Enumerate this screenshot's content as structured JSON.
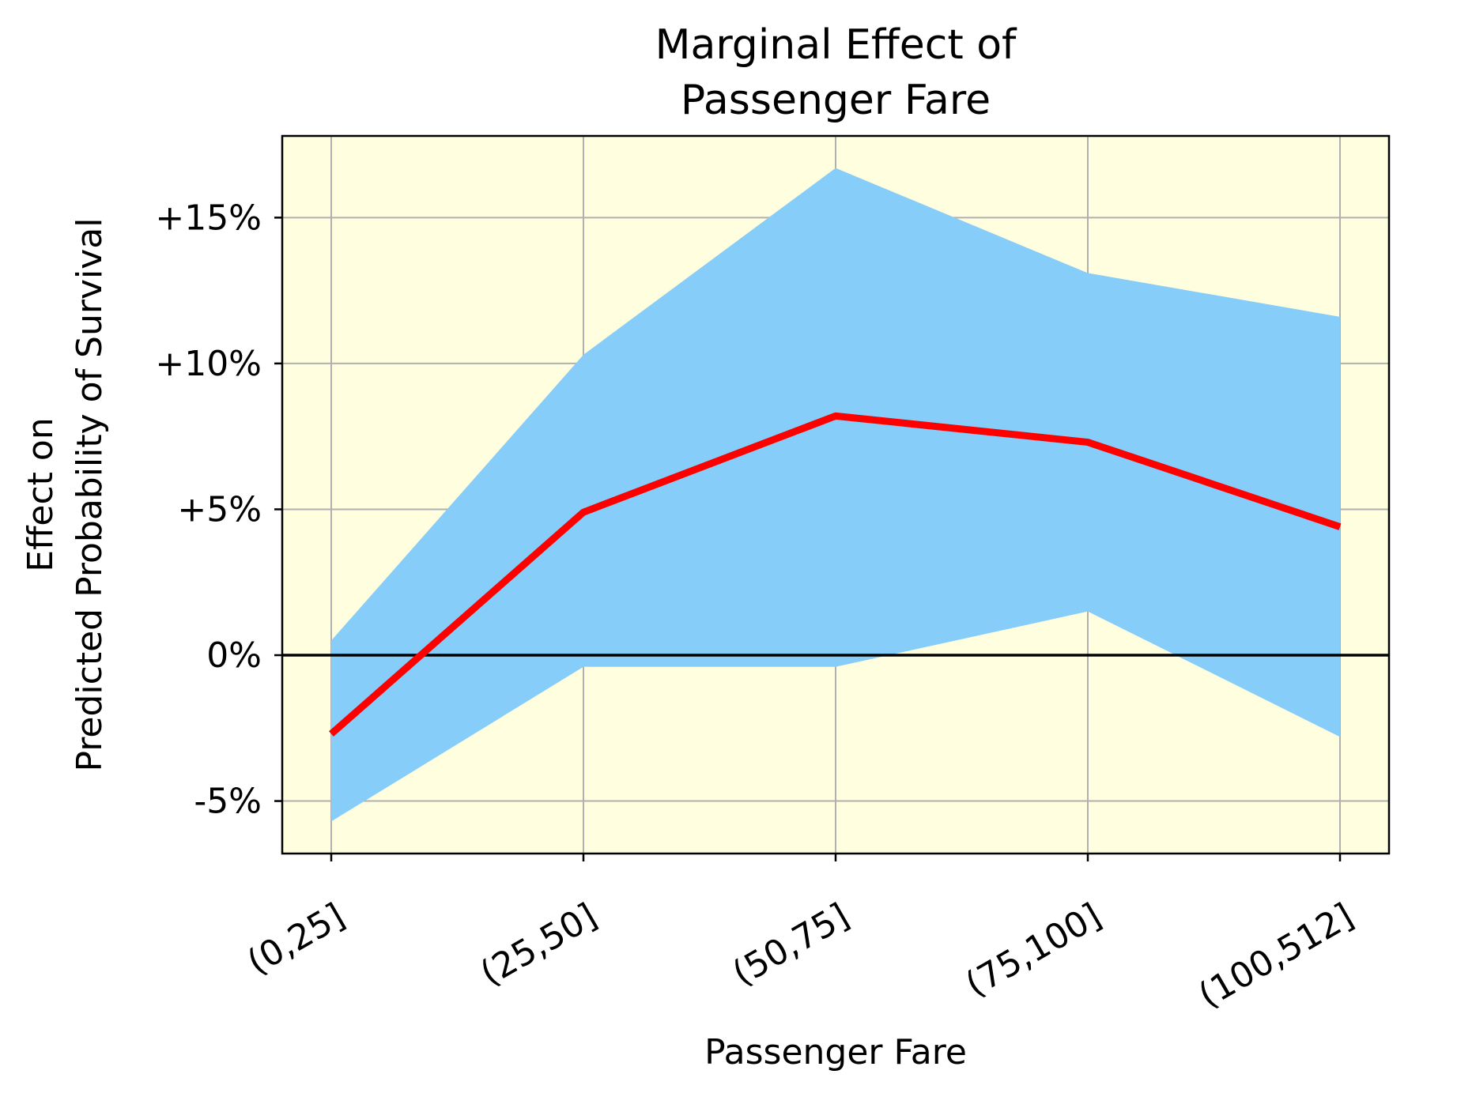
{
  "chart_data": {
    "type": "line",
    "title_lines": [
      "Marginal Effect of",
      "Passenger Fare"
    ],
    "xlabel": "Passenger Fare",
    "ylabel_lines": [
      "Effect on",
      "Predicted Probability of Survival"
    ],
    "categories": [
      "(0,25]",
      "(25,50]",
      "(50,75]",
      "(75,100]",
      "(100,512]"
    ],
    "series": [
      {
        "values": [
          -2.7,
          4.9,
          8.2,
          7.3,
          4.4
        ],
        "color": "#ff0000"
      }
    ],
    "band": {
      "lower": [
        -5.7,
        -0.4,
        -0.4,
        1.5,
        -2.8
      ],
      "upper": [
        0.5,
        10.3,
        16.7,
        13.1,
        11.6
      ],
      "color": "#87cdf9"
    },
    "yticks": [
      -5,
      0,
      5,
      10,
      15
    ],
    "ytick_labels": [
      "-5%",
      "0%",
      "+5%",
      "+10%",
      "+15%"
    ],
    "ylim": [
      -6.8,
      17.8
    ],
    "reference_line_y": 0,
    "grid": true,
    "plot_background": "#ffffe0",
    "grid_color": "#b0b0b0"
  }
}
